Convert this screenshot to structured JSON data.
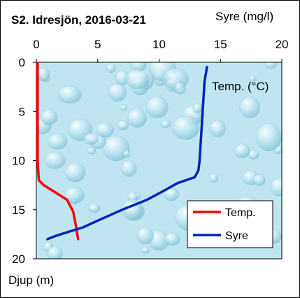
{
  "chart_data": {
    "type": "line",
    "title": "S2. Idresjön, 2016-03-21",
    "top_axis_label": "Syre (mg/l)",
    "ylabel": "Djup (m)",
    "inside_label": "Temp. (°C)",
    "xlim": [
      0,
      20
    ],
    "ylim": [
      0,
      20
    ],
    "y_inverted": true,
    "x_ticks": [
      "0",
      "5",
      "10",
      "15",
      "20"
    ],
    "y_ticks": [
      "0",
      "5",
      "10",
      "15",
      "20"
    ],
    "grid": false,
    "legend_position": "bottom-right",
    "plot_background": "#bfe6f0",
    "series": [
      {
        "name": "Temp.",
        "color": "#ff0000",
        "points": [
          {
            "x": 0.1,
            "y": 0
          },
          {
            "x": 0.1,
            "y": 10
          },
          {
            "x": 0.2,
            "y": 12
          },
          {
            "x": 0.6,
            "y": 12.5
          },
          {
            "x": 1.5,
            "y": 13.2
          },
          {
            "x": 2.5,
            "y": 14
          },
          {
            "x": 3.0,
            "y": 15.2
          },
          {
            "x": 3.2,
            "y": 16.5
          },
          {
            "x": 3.4,
            "y": 18
          }
        ]
      },
      {
        "name": "Syre",
        "color": "#0022bb",
        "points": [
          {
            "x": 13.9,
            "y": 0.5
          },
          {
            "x": 13.7,
            "y": 2
          },
          {
            "x": 13.6,
            "y": 4
          },
          {
            "x": 13.5,
            "y": 6
          },
          {
            "x": 13.4,
            "y": 8
          },
          {
            "x": 13.3,
            "y": 10
          },
          {
            "x": 13.2,
            "y": 11
          },
          {
            "x": 12.9,
            "y": 11.7
          },
          {
            "x": 11.5,
            "y": 12.3
          },
          {
            "x": 10.5,
            "y": 13
          },
          {
            "x": 9.0,
            "y": 14
          },
          {
            "x": 7.0,
            "y": 15
          },
          {
            "x": 5.2,
            "y": 16
          },
          {
            "x": 3.8,
            "y": 16.8
          },
          {
            "x": 2.5,
            "y": 17.3
          },
          {
            "x": 1.5,
            "y": 17.7
          },
          {
            "x": 0.9,
            "y": 18
          }
        ]
      }
    ]
  }
}
